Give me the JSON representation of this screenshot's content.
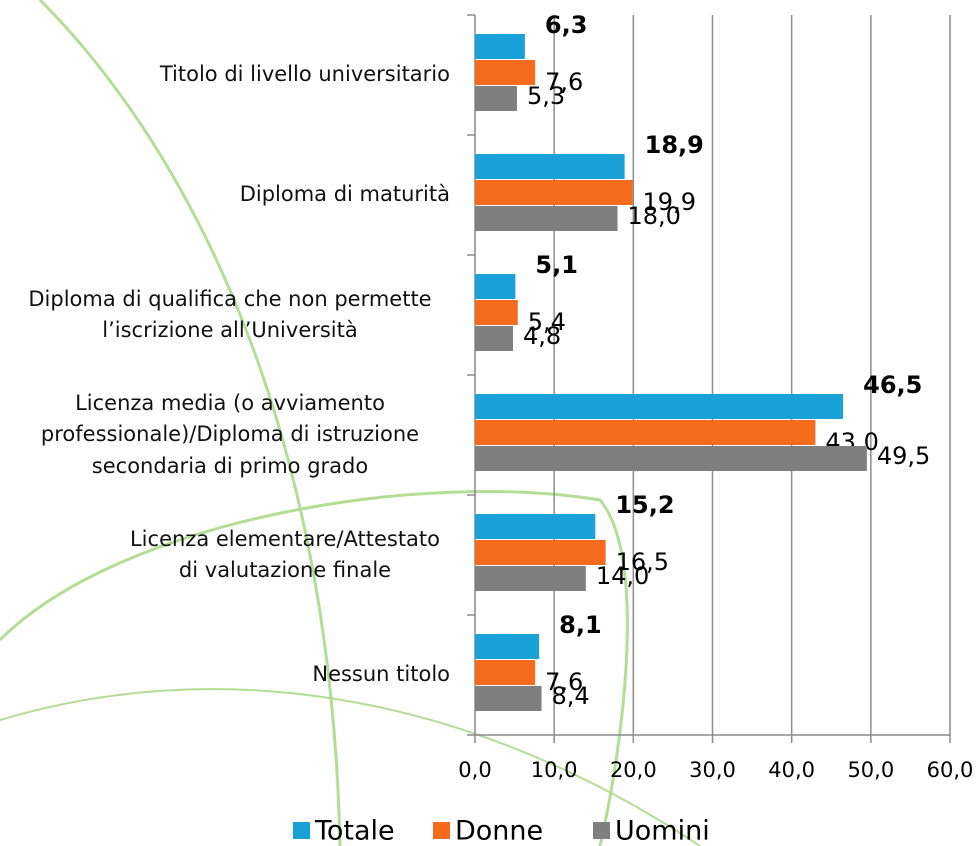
{
  "chart_data": {
    "type": "bar",
    "orientation": "horizontal",
    "categories": [
      "Titolo di livello universitario",
      "Diploma di maturità",
      "Diploma di qualifica che non permette l’iscrizione all’Università",
      "Licenza media (o avviamento professionale)/Diploma di istruzione secondaria di primo grado",
      "Licenza elementare/Attestato di valutazione finale",
      "Nessun titolo"
    ],
    "series": [
      {
        "name": "Totale",
        "color": "#1aa1d8",
        "values": [
          6.3,
          18.9,
          5.1,
          46.5,
          15.2,
          8.1
        ],
        "value_labels": [
          "6,3",
          "18,9",
          "5,1",
          "46,5",
          "15,2",
          "8,1"
        ]
      },
      {
        "name": "Donne",
        "color": "#f46b1e",
        "values": [
          7.6,
          19.9,
          5.4,
          43.0,
          16.5,
          7.6
        ],
        "value_labels": [
          "7,6",
          "19,9",
          "5,4",
          "43,0",
          "16,5",
          "7,6"
        ]
      },
      {
        "name": "Uomini",
        "color": "#7f7f7f",
        "values": [
          5.3,
          18.0,
          4.8,
          49.5,
          14.0,
          8.4
        ],
        "value_labels": [
          "5,3",
          "18,0",
          "4,8",
          "49,5",
          "14,0",
          "8,4"
        ]
      }
    ],
    "xlim": [
      0,
      60
    ],
    "xticks": [
      {
        "value": 0,
        "label": "0,0"
      },
      {
        "value": 10,
        "label": "10,0"
      },
      {
        "value": 20,
        "label": "20,0"
      },
      {
        "value": 30,
        "label": "30,0"
      },
      {
        "value": 40,
        "label": "40,0"
      },
      {
        "value": 50,
        "label": "50,0"
      },
      {
        "value": 60,
        "label": "60,0"
      }
    ],
    "grid": true,
    "legend": "bottom"
  }
}
